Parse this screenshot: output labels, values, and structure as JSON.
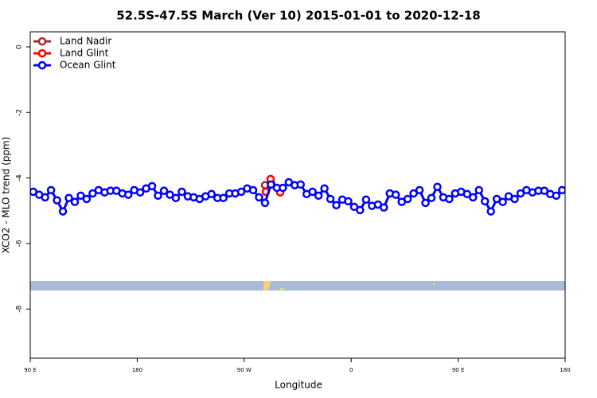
{
  "chart_data": {
    "type": "line",
    "title": "52.5S-47.5S March (Ver 10)   2015-01-01 to 2020-12-18",
    "xlabel": "Longitude",
    "ylabel": "XCO2 - MLO trend (ppm)",
    "xlim": [
      90,
      540
    ],
    "ylim": [
      -9.5,
      0.46
    ],
    "xticks": [
      {
        "value": 90,
        "label": "90 E"
      },
      180,
      {
        "value": 270,
        "label": "90 W"
      },
      {
        "value": 360,
        "label": "0"
      },
      {
        "value": 450,
        "label": "90 E"
      },
      {
        "value": 540,
        "label": "180"
      }
    ],
    "yticks": [
      0,
      -2,
      -4,
      -6,
      -8
    ],
    "legend": "upper left",
    "series": [
      {
        "name": "Land Nadir",
        "color": "#a52a2a",
        "x": [
          287.5,
          292.5
        ],
        "values": [
          -4.22,
          -4.13
        ]
      },
      {
        "name": "Land Glint",
        "color": "#ff0000",
        "x": [
          288.2,
          292.2,
          300.3
        ],
        "values": [
          -4.42,
          -4.03,
          -4.44
        ]
      },
      {
        "name": "Ocean Glint",
        "color": "#0000ff",
        "x": [
          92.5,
          97.5,
          102.5,
          107.5,
          112.5,
          117.5,
          122.5,
          127.5,
          132.5,
          137.5,
          142.5,
          147.5,
          152.5,
          157.5,
          162.5,
          167.5,
          172.5,
          177.5,
          182.5,
          187.5,
          192.5,
          197.5,
          202.5,
          207.5,
          212.5,
          217.5,
          222.5,
          227.5,
          232.5,
          237.5,
          242.5,
          247.5,
          252.5,
          257.5,
          262.5,
          267.5,
          272.5,
          277.5,
          282.5,
          287.5,
          292.5,
          297.5,
          302.5,
          307.5,
          312.5,
          317.5,
          322.5,
          327.5,
          332.5,
          337.5,
          342.5,
          347.5,
          352.5,
          357.5,
          362.5,
          367.5,
          372.5,
          377.5,
          382.5,
          387.5,
          392.5,
          397.5,
          402.5,
          407.5,
          412.5,
          417.5,
          422.5,
          427.5,
          432.5,
          437.5,
          442.5,
          447.5,
          452.5,
          457.5,
          462.5,
          467.5,
          472.5,
          477.5,
          482.5,
          487.5,
          492.5,
          497.5,
          502.5,
          507.5,
          512.5,
          517.5,
          522.5,
          527.5,
          532.5,
          537.5
        ],
        "values": [
          -4.42,
          -4.51,
          -4.59,
          -4.37,
          -4.68,
          -5.02,
          -4.61,
          -4.73,
          -4.54,
          -4.64,
          -4.47,
          -4.37,
          -4.44,
          -4.39,
          -4.39,
          -4.47,
          -4.51,
          -4.37,
          -4.44,
          -4.32,
          -4.25,
          -4.54,
          -4.39,
          -4.51,
          -4.61,
          -4.42,
          -4.56,
          -4.59,
          -4.64,
          -4.56,
          -4.49,
          -4.61,
          -4.61,
          -4.47,
          -4.47,
          -4.42,
          -4.32,
          -4.37,
          -4.59,
          -4.76,
          -4.2,
          -4.3,
          -4.3,
          -4.13,
          -4.22,
          -4.2,
          -4.49,
          -4.42,
          -4.54,
          -4.32,
          -4.64,
          -4.83,
          -4.66,
          -4.71,
          -4.88,
          -4.98,
          -4.66,
          -4.85,
          -4.81,
          -4.9,
          -4.47,
          -4.51,
          -4.73,
          -4.64,
          -4.47,
          -4.37,
          -4.76,
          -4.61,
          -4.27,
          -4.59,
          -4.64,
          -4.47,
          -4.42,
          -4.49,
          -4.59,
          -4.37,
          -4.71,
          -5.02,
          -4.64,
          -4.73,
          -4.56,
          -4.64,
          -4.47,
          -4.37,
          -4.44,
          -4.39,
          -4.39,
          -4.49,
          -4.54,
          -4.37
        ]
      }
    ]
  }
}
